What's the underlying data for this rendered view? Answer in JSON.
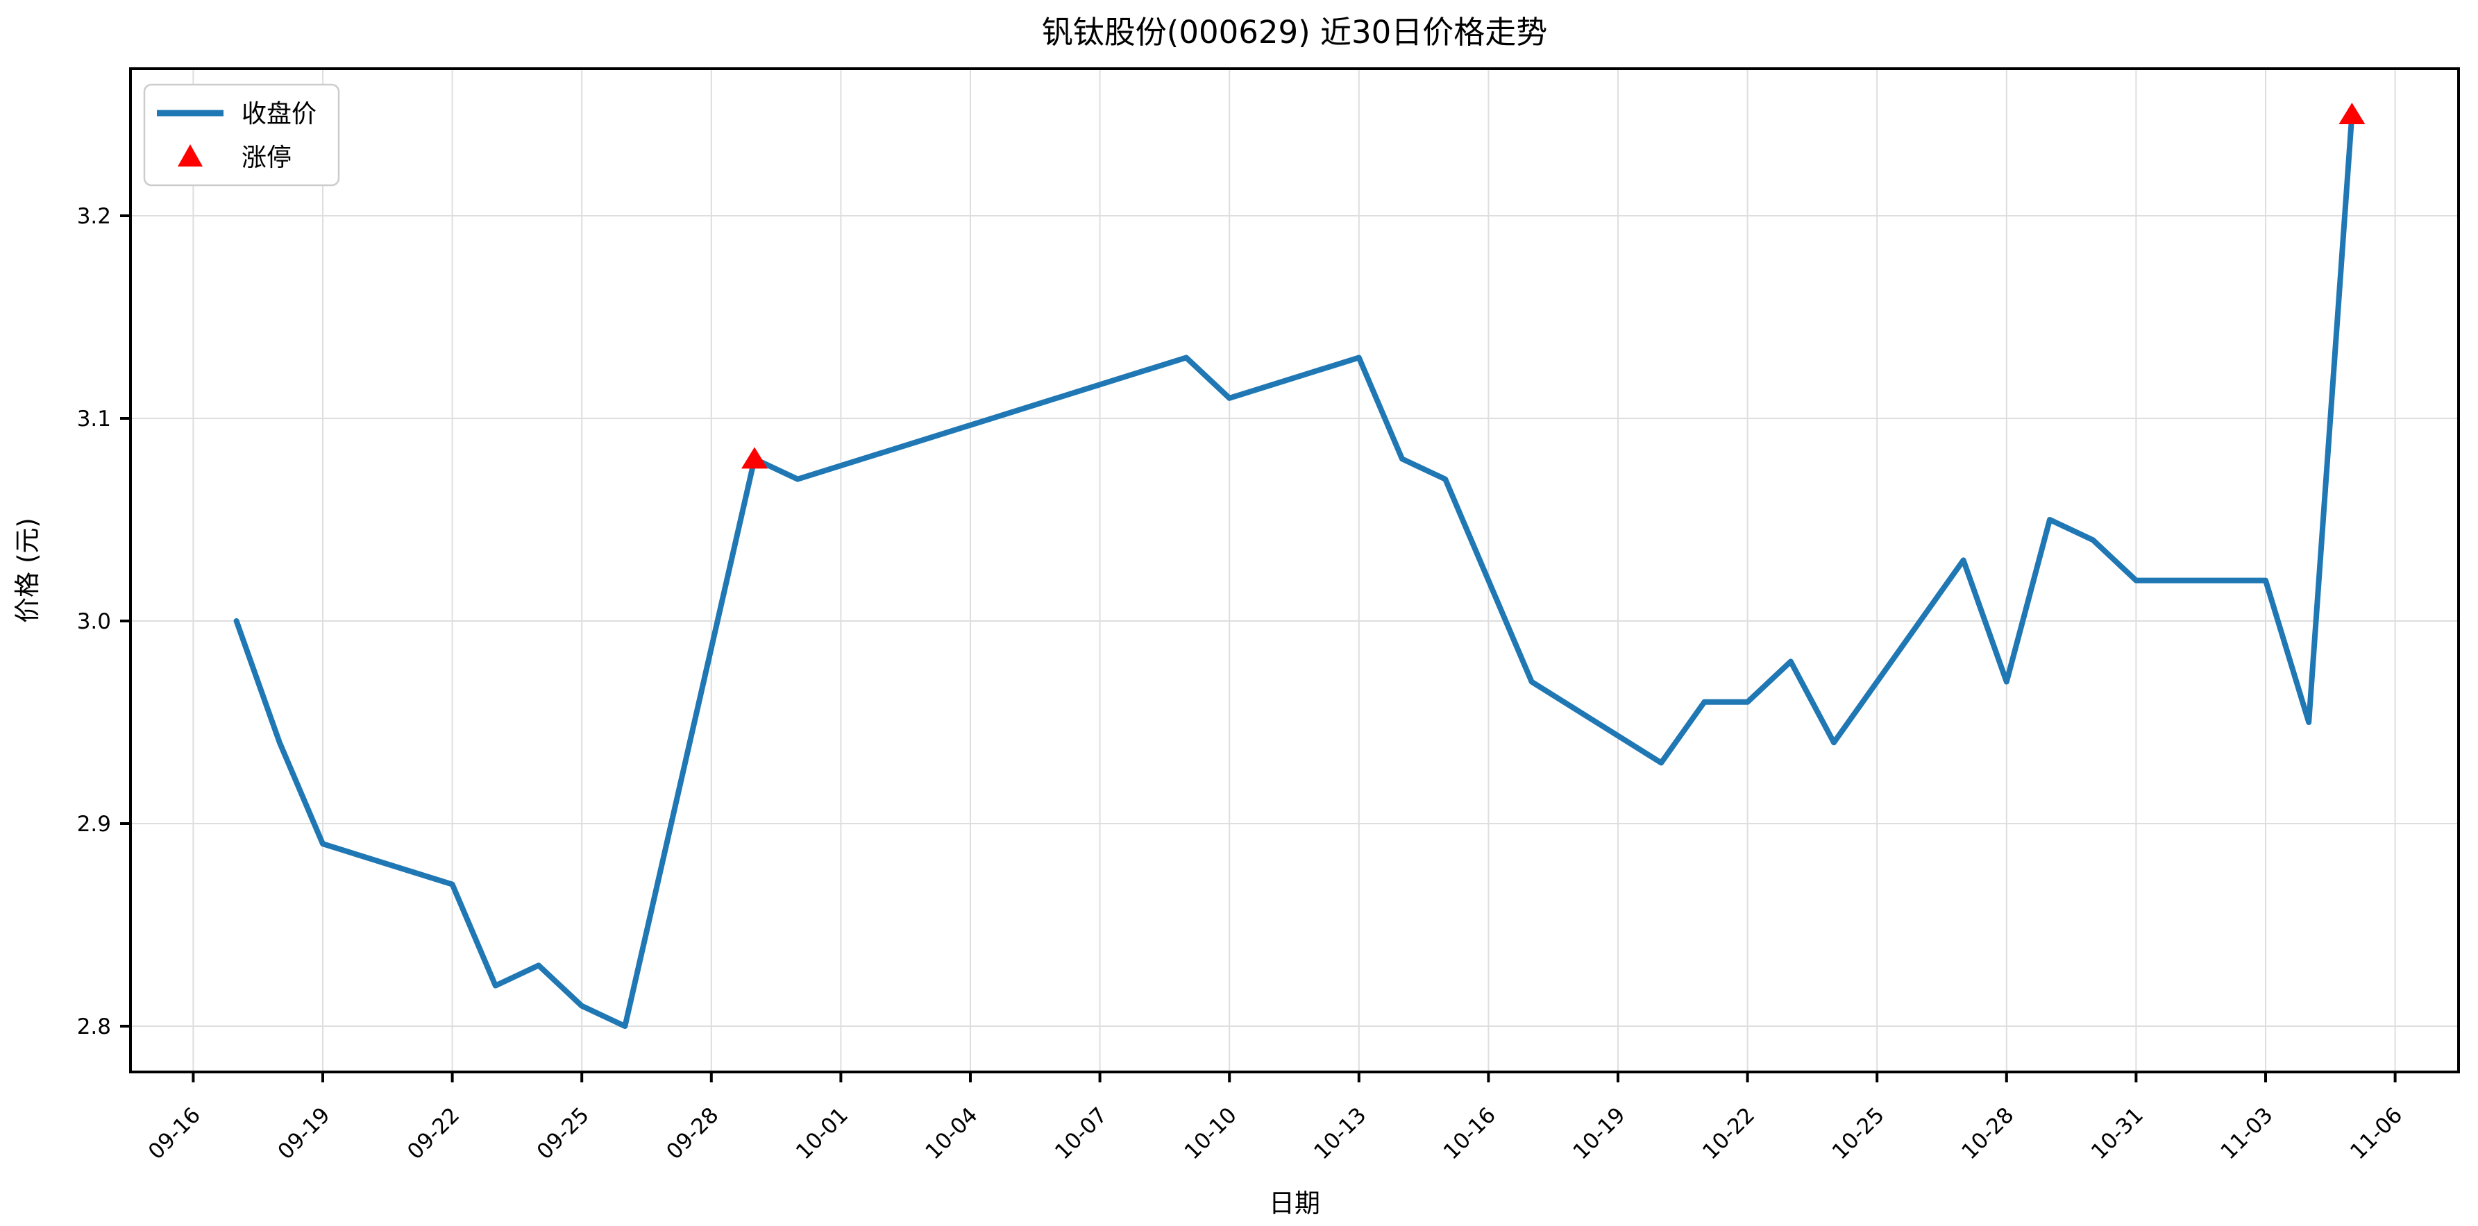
{
  "chart_data": {
    "type": "line",
    "title": "钒钛股份(000629) 近30日价格走势",
    "xlabel": "日期",
    "ylabel": "价格 (元)",
    "grid": true,
    "background": "#ffffff",
    "grid_color": "#dedede",
    "spine_color": "#000000",
    "line_color": "#1f77b4",
    "marker_color": "#ff0000",
    "legend_position": "upper-left",
    "legend": [
      {
        "label": "收盘价",
        "symbol": "line",
        "color": "#1f77b4"
      },
      {
        "label": "涨停",
        "symbol": "triangle-up",
        "color": "#ff0000"
      }
    ],
    "x_axis": {
      "tick_labels": [
        "09-16",
        "09-19",
        "09-22",
        "09-25",
        "09-28",
        "10-01",
        "10-04",
        "10-07",
        "10-10",
        "10-13",
        "10-16",
        "10-19",
        "10-22",
        "10-25",
        "10-28",
        "10-31",
        "11-03",
        "11-06"
      ],
      "tick_day_offsets": [
        0,
        3,
        6,
        9,
        12,
        15,
        18,
        21,
        24,
        27,
        30,
        33,
        36,
        39,
        42,
        45,
        48,
        51
      ],
      "label_rotation_deg": 45
    },
    "y_axis": {
      "tick_labels": [
        "2.8",
        "2.9",
        "3.0",
        "3.1",
        "3.2"
      ],
      "tick_values": [
        2.8,
        2.9,
        3.0,
        3.1,
        3.2
      ],
      "ylim": [
        2.7775,
        3.2725
      ]
    },
    "series": [
      {
        "name": "收盘价",
        "color": "#1f77b4",
        "points": [
          {
            "date": "09-17",
            "value": 3.0
          },
          {
            "date": "09-18",
            "value": 2.94
          },
          {
            "date": "09-19",
            "value": 2.89
          },
          {
            "date": "09-22",
            "value": 2.87
          },
          {
            "date": "09-23",
            "value": 2.82
          },
          {
            "date": "09-24",
            "value": 2.83
          },
          {
            "date": "09-25",
            "value": 2.81
          },
          {
            "date": "09-26",
            "value": 2.8
          },
          {
            "date": "09-29",
            "value": 3.08
          },
          {
            "date": "09-30",
            "value": 3.07
          },
          {
            "date": "10-09",
            "value": 3.13
          },
          {
            "date": "10-10",
            "value": 3.11
          },
          {
            "date": "10-13",
            "value": 3.13
          },
          {
            "date": "10-14",
            "value": 3.08
          },
          {
            "date": "10-15",
            "value": 3.07
          },
          {
            "date": "10-16",
            "value": 3.02
          },
          {
            "date": "10-17",
            "value": 2.97
          },
          {
            "date": "10-20",
            "value": 2.93
          },
          {
            "date": "10-21",
            "value": 2.96
          },
          {
            "date": "10-22",
            "value": 2.96
          },
          {
            "date": "10-23",
            "value": 2.98
          },
          {
            "date": "10-24",
            "value": 2.94
          },
          {
            "date": "10-27",
            "value": 3.03
          },
          {
            "date": "10-28",
            "value": 2.97
          },
          {
            "date": "10-29",
            "value": 3.05
          },
          {
            "date": "10-30",
            "value": 3.04
          },
          {
            "date": "10-31",
            "value": 3.02
          },
          {
            "date": "11-03",
            "value": 3.02
          },
          {
            "date": "11-04",
            "value": 2.95
          },
          {
            "date": "11-05",
            "value": 3.25
          }
        ]
      }
    ],
    "markers": [
      {
        "date": "09-29",
        "value": 3.08,
        "label": "涨停"
      },
      {
        "date": "11-05",
        "value": 3.25,
        "label": "涨停"
      }
    ]
  }
}
